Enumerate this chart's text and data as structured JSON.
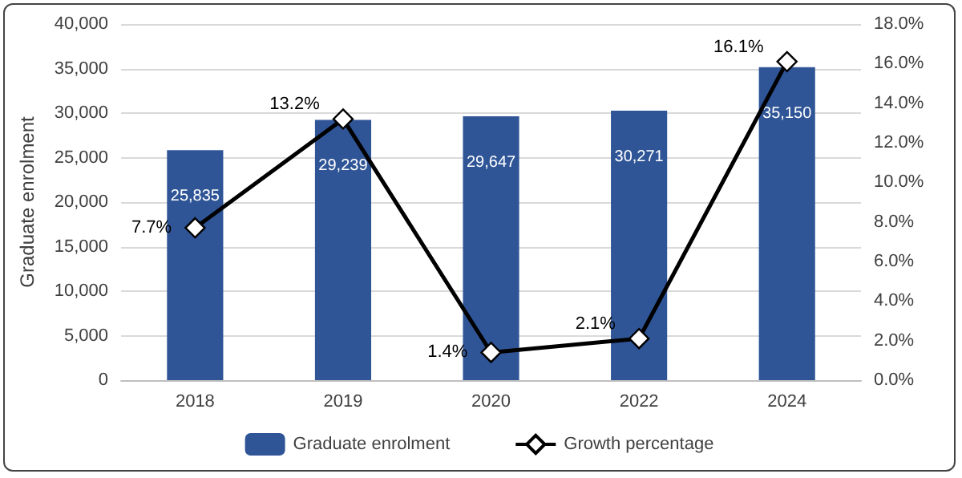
{
  "chart_data": {
    "type": "bar",
    "categories": [
      "2018",
      "2019",
      "2020",
      "2022",
      "2024"
    ],
    "ylabel": "Graduate enrolment",
    "series": [
      {
        "name": "Graduate enrolment",
        "color": "#2f5597",
        "values": [
          25835,
          29239,
          29647,
          30271,
          35150
        ],
        "value_labels": [
          "25,835",
          "29,239",
          "29,647",
          "30,271",
          "35,150"
        ]
      },
      {
        "name": "Growth percentage",
        "type": "line",
        "axis": "y2",
        "color": "#000000",
        "marker": "diamond",
        "values": [
          7.7,
          13.2,
          1.4,
          2.1,
          16.1
        ],
        "value_labels": [
          "7.7%",
          "13.2%",
          "1.4%",
          "2.1%",
          "16.1%"
        ]
      }
    ],
    "ylim": [
      0,
      40000
    ],
    "yticks": [
      {
        "value": 0,
        "label": "0"
      },
      {
        "value": 5000,
        "label": "5,000"
      },
      {
        "value": 10000,
        "label": "10,000"
      },
      {
        "value": 15000,
        "label": "15,000"
      },
      {
        "value": 20000,
        "label": "20,000"
      },
      {
        "value": 25000,
        "label": "25,000"
      },
      {
        "value": 30000,
        "label": "30,000"
      },
      {
        "value": 35000,
        "label": "35,000"
      },
      {
        "value": 40000,
        "label": "40,000"
      }
    ],
    "y2lim": [
      0,
      18
    ],
    "y2ticks": [
      {
        "value": 0,
        "label": "0.0%"
      },
      {
        "value": 2,
        "label": "2.0%"
      },
      {
        "value": 4,
        "label": "4.0%"
      },
      {
        "value": 6,
        "label": "6.0%"
      },
      {
        "value": 8,
        "label": "8.0%"
      },
      {
        "value": 10,
        "label": "10.0%"
      },
      {
        "value": 12,
        "label": "12.0%"
      },
      {
        "value": 14,
        "label": "14.0%"
      },
      {
        "value": 16,
        "label": "16.0%"
      },
      {
        "value": 18,
        "label": "18.0%"
      }
    ],
    "grid": "y",
    "legend": "bottom"
  }
}
